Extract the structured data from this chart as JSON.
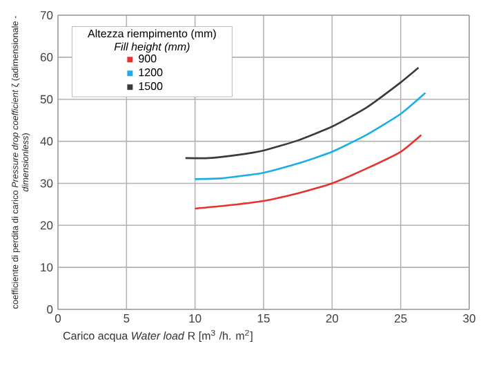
{
  "chart_data": {
    "type": "line",
    "xlabel": "Carico acqua *Water load*  R [m$^{3}$ /h. m$^{2}$]",
    "ylabel": "coefficiente di perdita di carico *Pressure drop coefficient* ζ (adimensionale - *dimensionless*)",
    "legend_title": "Altezza riempimento (mm) *Fill height (mm)*",
    "xlim": [
      0,
      30
    ],
    "xticks": [
      0,
      5,
      10,
      15,
      20,
      25,
      30
    ],
    "ylim": [
      0,
      70
    ],
    "yticks": [
      0,
      10,
      20,
      30,
      40,
      50,
      60,
      70
    ],
    "grid": true,
    "legend": "top left",
    "marker": "none",
    "line_style": "solid",
    "series": [
      {
        "name": "900",
        "color": "#e8312a",
        "x": [
          10,
          12,
          15,
          17.5,
          20,
          22.5,
          25,
          26.5
        ],
        "values": [
          24,
          24.6,
          25.8,
          27.6,
          30,
          33.5,
          37.5,
          41.5
        ]
      },
      {
        "name": "1200",
        "color": "#19aee6",
        "x": [
          10,
          12,
          15,
          17.5,
          20,
          22.5,
          25,
          26.8
        ],
        "values": [
          31,
          31.2,
          32.5,
          34.7,
          37.5,
          41.5,
          46.5,
          51.5
        ]
      },
      {
        "name": "1500",
        "color": "#3a3a3a",
        "x": [
          9.3,
          11,
          13,
          15,
          17.5,
          20,
          22.5,
          25,
          26.3
        ],
        "values": [
          36,
          36,
          36.7,
          37.8,
          40.2,
          43.5,
          48,
          54,
          57.5
        ]
      }
    ]
  }
}
